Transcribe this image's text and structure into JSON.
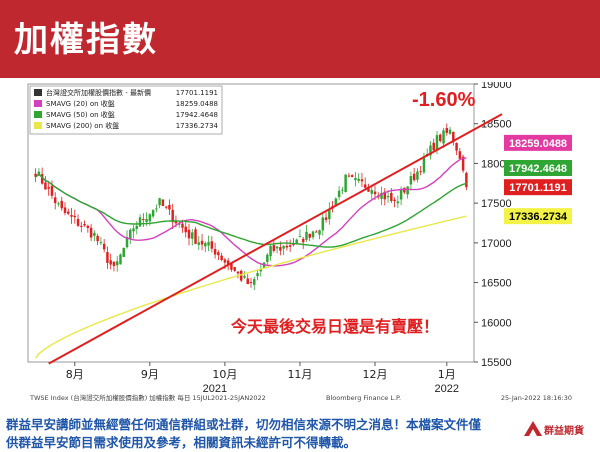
{
  "header": {
    "title": "加權指數"
  },
  "chart_data": {
    "type": "candlestick",
    "legend": {
      "placement": "top-left",
      "entries": [
        {
          "name": "台灣證交所加權股價指數 - 最新價",
          "value": "17701.1191",
          "color": "#333333"
        },
        {
          "name": "SMAVG (20)  on 收盤",
          "value": "18259.0488",
          "color": "#d63fbf"
        },
        {
          "name": "SMAVG (50)  on 收盤",
          "value": "17942.4648",
          "color": "#2fa533"
        },
        {
          "name": "SMAVG (200)  on 收盤",
          "value": "17336.2734",
          "color": "#e8e84a"
        }
      ]
    },
    "y_axis": {
      "range": [
        15500,
        19000
      ],
      "ticks": [
        "19000",
        "18500",
        "18000",
        "17500",
        "17000",
        "16500",
        "16000",
        "15500"
      ]
    },
    "x_axis": {
      "months": [
        "8月",
        "9月",
        "10月",
        "11月",
        "12月",
        "1月"
      ],
      "years": [
        "2021",
        "2022"
      ]
    },
    "price_labels": [
      {
        "text": "18259.0488",
        "value": 18259.0488,
        "bg": "#e23aa0",
        "color": "#ffffff"
      },
      {
        "text": "17942.4648",
        "value": 17942.4648,
        "bg": "#2fa533",
        "color": "#ffffff"
      },
      {
        "text": "17701.1191",
        "value": 17701.1191,
        "bg": "#e02020",
        "color": "#ffffff"
      },
      {
        "text": "17336.2734",
        "value": 17336.2734,
        "bg": "#f2f247",
        "color": "#000000"
      }
    ],
    "annotations": {
      "change": "-1.60%",
      "comment": "今天最後交易日還是有賣壓！"
    },
    "source_left": "TWSE Index (台灣證交所加權股價指數)  加權指數    每日 15JUL2021-25JAN2022",
    "source_right": "Bloomberg Finance L.P.",
    "timestamp": "25-Jan-2022  18:16:30",
    "colors": {
      "up": "#2fa533",
      "down": "#e02020",
      "trendline": "#e02020"
    }
  },
  "footer": {
    "line1": "群益早安講師並無經營任何通信群組或社群，切勿相信來源不明之消息！本檔案文件僅",
    "line2": "供群益早安節目需求使用及參考，相關資訊未經許可不得轉載。",
    "logo_text": "群益期貨"
  }
}
